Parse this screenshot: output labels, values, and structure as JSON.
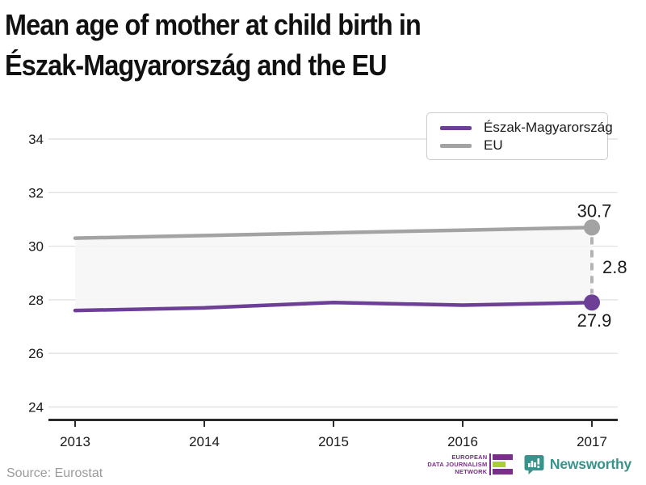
{
  "title": {
    "line1": "Mean age of mother at child birth in",
    "line2": "Észak-Magyarország and the EU"
  },
  "source": "Source: Eurostat",
  "footer_logos": {
    "edjn": {
      "line1": "EUROPEAN",
      "line2": "DATA JOURNALISM",
      "line3": "NETWORK",
      "purple": "#7b2d8b",
      "green": "#a8cf38"
    },
    "newsworthy": {
      "label": "Newsworthy",
      "teal": "#38938c"
    }
  },
  "chart_data": {
    "type": "line",
    "title": "Mean age of mother at child birth in Észak-Magyarország and the EU",
    "x": [
      2013,
      2014,
      2015,
      2016,
      2017
    ],
    "series": [
      {
        "name": "Észak-Magyarország",
        "color": "#6d3f96",
        "values": [
          27.6,
          27.7,
          27.9,
          27.8,
          27.9
        ]
      },
      {
        "name": "EU",
        "color": "#a3a3a3",
        "values": [
          30.3,
          30.4,
          30.5,
          30.6,
          30.7
        ]
      }
    ],
    "ylim": [
      24,
      34
    ],
    "yticks": [
      24,
      26,
      28,
      30,
      32,
      34
    ],
    "end_labels": {
      "eu": "30.7",
      "region": "27.9",
      "diff": "2.8"
    },
    "grid": "horizontal",
    "fill_between_color": "#f6f6f6",
    "diff_connector_color": "#b3b3b3",
    "legend_position": "top-right"
  }
}
